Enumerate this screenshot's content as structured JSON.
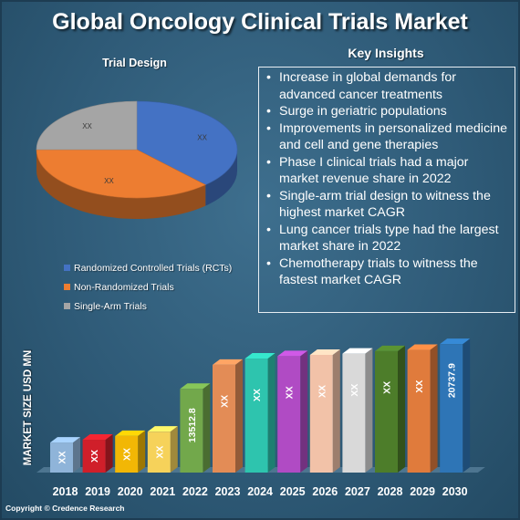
{
  "title": "Global Oncology Clinical Trials Market",
  "insights_heading": "Key Insights",
  "insights": [
    "Increase in global demands for advanced cancer treatments",
    "Surge in geriatric populations",
    "Improvements in personalized medicine and cell and gene therapies",
    "Phase I clinical trials had a major market revenue share in 2022",
    "Single-arm trial design to witness the highest market CAGR",
    "Lung cancer trials type had the largest market share in 2022",
    "Chemotherapy trials to witness the fastest market CAGR"
  ],
  "copyright": "Copyright © Credence Research",
  "chart_data": [
    {
      "type": "pie",
      "title": "Trial Design",
      "style": "3d",
      "slices": [
        {
          "name": "Randomized Controlled Trials (RCTs)",
          "label": "XX",
          "share": 0.38,
          "color": "#4472c4"
        },
        {
          "name": "Non-Randomized Trials",
          "label": "XX",
          "share": 0.37,
          "color": "#ed7d31"
        },
        {
          "name": "Single-Arm Trials",
          "label": "XX",
          "share": 0.25,
          "color": "#a5a5a5"
        }
      ],
      "legend_position": "bottom-left"
    },
    {
      "type": "bar",
      "style": "3d",
      "ylabel": "MARKET SIZE USD MN",
      "categories": [
        "2018",
        "2019",
        "2020",
        "2021",
        "2022",
        "2023",
        "2024",
        "2025",
        "2026",
        "2027",
        "2028",
        "2029",
        "2030"
      ],
      "values": [
        4850,
        5300,
        5900,
        6600,
        13512.8,
        17400,
        18400,
        18800,
        19000,
        19200,
        19600,
        19800,
        20737.9
      ],
      "labels": [
        "XX",
        "XX",
        "XX",
        "XX",
        "13512.8",
        "XX",
        "XX",
        "XX",
        "XX",
        "XX",
        "XX",
        "XX",
        "20737.9"
      ],
      "colors": [
        "#8fb4d9",
        "#d01f2a",
        "#f2b705",
        "#f6d25a",
        "#72a84b",
        "#e38c56",
        "#2ec4ae",
        "#b04bc4",
        "#f2c2a8",
        "#d9d9d9",
        "#4d7d2a",
        "#e07b3c",
        "#2e75b6"
      ],
      "ylim": [
        0,
        21500
      ],
      "grid": false
    }
  ]
}
